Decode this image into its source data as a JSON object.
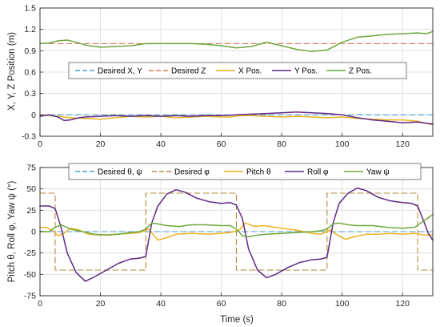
{
  "colors": {
    "desired_blue": "#4d9fcf",
    "desired_red": "#e07a5f",
    "orange": "#edb120",
    "purple": "#5e2a84",
    "green": "#6ea83c",
    "dashed_olive": "#b08a3e"
  },
  "chart_data": [
    {
      "type": "line",
      "title": "",
      "xlabel": "",
      "ylabel": "X, Y, Z Position (m)",
      "xlim": [
        0,
        130
      ],
      "ylim": [
        -0.3,
        1.5
      ],
      "xticks": [
        0,
        20,
        40,
        60,
        80,
        100,
        120
      ],
      "xtick_labels": [
        "0",
        "20",
        "40",
        "60",
        "80",
        "100",
        "120"
      ],
      "yticks": [
        -0.3,
        0,
        0.3,
        0.6,
        0.9,
        1.2,
        1.5
      ],
      "ytick_labels": [
        "-0.3",
        "0",
        "0.3",
        "0.6",
        "0.9",
        "1.2",
        "1.5"
      ],
      "grid": true,
      "legend": "inside-middle horizontal",
      "series": [
        {
          "name": "Desired X, Y",
          "style": "dashed",
          "color": "#4d9fcf",
          "x": [
            0,
            130
          ],
          "y": [
            0,
            0
          ]
        },
        {
          "name": "Desired Z",
          "style": "dashed",
          "color": "#e07a5f",
          "x": [
            0,
            130
          ],
          "y": [
            1.0,
            1.0
          ]
        },
        {
          "name": "X Pos.",
          "style": "solid",
          "color": "#edb120",
          "x": [
            0,
            3,
            6,
            10,
            15,
            20,
            25,
            30,
            35,
            40,
            45,
            50,
            55,
            60,
            63,
            66,
            70,
            75,
            80,
            85,
            90,
            95,
            100,
            105,
            110,
            115,
            120,
            125,
            130
          ],
          "y": [
            0,
            -0.01,
            -0.02,
            -0.04,
            -0.05,
            -0.06,
            -0.04,
            -0.02,
            -0.03,
            -0.02,
            -0.04,
            -0.03,
            -0.02,
            -0.03,
            -0.03,
            -0.01,
            -0.01,
            -0.02,
            -0.03,
            -0.02,
            -0.03,
            -0.04,
            -0.03,
            -0.05,
            -0.06,
            -0.07,
            -0.07,
            -0.09,
            -0.14
          ]
        },
        {
          "name": "Y Pos.",
          "style": "solid",
          "color": "#5e2a84",
          "x": [
            0,
            3,
            6,
            8,
            10,
            13,
            15,
            20,
            25,
            30,
            35,
            40,
            45,
            50,
            55,
            60,
            65,
            70,
            75,
            80,
            85,
            90,
            95,
            100,
            105,
            110,
            115,
            120,
            125,
            130
          ],
          "y": [
            -0.02,
            0.0,
            -0.03,
            -0.08,
            -0.07,
            -0.04,
            -0.03,
            -0.02,
            -0.01,
            -0.02,
            -0.01,
            -0.02,
            -0.01,
            -0.02,
            -0.01,
            -0.01,
            0.0,
            0.01,
            0.02,
            0.03,
            0.04,
            0.03,
            0.02,
            0.0,
            -0.04,
            -0.07,
            -0.09,
            -0.11,
            -0.1,
            -0.13
          ]
        },
        {
          "name": "Z Pos.",
          "style": "solid",
          "color": "#6ea83c",
          "x": [
            0,
            3,
            6,
            9,
            12,
            15,
            20,
            25,
            30,
            35,
            40,
            45,
            50,
            55,
            60,
            65,
            70,
            75,
            80,
            85,
            90,
            95,
            100,
            105,
            110,
            115,
            120,
            125,
            128,
            130
          ],
          "y": [
            1.0,
            1.01,
            1.04,
            1.05,
            1.02,
            0.98,
            0.95,
            0.96,
            0.97,
            1.0,
            1.0,
            1.0,
            1.0,
            0.99,
            0.97,
            0.94,
            0.96,
            1.02,
            0.97,
            0.92,
            0.89,
            0.91,
            1.02,
            1.09,
            1.11,
            1.13,
            1.14,
            1.15,
            1.14,
            1.17
          ]
        }
      ]
    },
    {
      "type": "line",
      "title": "",
      "xlabel": "Time (s)",
      "ylabel": "Pitch θ, Roll φ, Yaw ψ (°)",
      "xlim": [
        0,
        130
      ],
      "ylim": [
        -75,
        75
      ],
      "xticks": [
        0,
        20,
        40,
        60,
        80,
        100,
        120
      ],
      "xtick_labels": [
        "0",
        "20",
        "40",
        "60",
        "80",
        "100",
        "120"
      ],
      "yticks": [
        -75,
        -50,
        -25,
        0,
        25,
        50,
        75
      ],
      "ytick_labels": [
        "-75",
        "-50",
        "-25",
        "0",
        "25",
        "50",
        "75"
      ],
      "grid": true,
      "legend": "top horizontal",
      "series": [
        {
          "name": "Desired θ, ψ",
          "style": "dashed",
          "color": "#4d9fcf",
          "x": [
            0,
            130
          ],
          "y": [
            0,
            0
          ]
        },
        {
          "name": "Desired φ",
          "style": "dashed",
          "color": "#e07a5f",
          "x": [
            0,
            5,
            5,
            35,
            35,
            65,
            65,
            95,
            95,
            125,
            125,
            130
          ],
          "y": [
            45,
            45,
            -45,
            -45,
            45,
            45,
            -45,
            -45,
            45,
            45,
            -45,
            -45
          ]
        },
        {
          "name": "Pitch θ",
          "style": "solid",
          "color": "#edb120",
          "x": [
            0,
            2,
            4,
            6,
            8,
            10,
            13,
            16,
            20,
            25,
            30,
            33,
            36,
            39,
            42,
            45,
            50,
            55,
            60,
            63,
            66,
            68,
            71,
            74,
            78,
            82,
            86,
            90,
            93,
            96,
            98,
            101,
            104,
            108,
            112,
            116,
            120,
            124,
            127,
            130
          ],
          "y": [
            5,
            5,
            2,
            -5,
            -2,
            4,
            2,
            -3,
            -4,
            -3,
            -2,
            -1,
            3,
            -10,
            -7,
            -3,
            -2,
            -3,
            -2,
            -1,
            2,
            10,
            6,
            7,
            5,
            3,
            1,
            -2,
            -3,
            2,
            -3,
            -9,
            -6,
            -3,
            -3,
            -2,
            -3,
            -2,
            -4,
            -4
          ]
        },
        {
          "name": "Roll φ",
          "style": "solid",
          "color": "#5e2a84",
          "x": [
            0,
            3,
            5,
            7,
            9,
            12,
            15,
            18,
            22,
            26,
            30,
            33,
            35,
            37,
            39,
            42,
            45,
            48,
            52,
            56,
            60,
            63,
            65,
            67,
            69,
            72,
            75,
            78,
            82,
            86,
            90,
            93,
            95,
            97,
            99,
            102,
            105,
            108,
            112,
            116,
            120,
            123,
            125,
            127,
            128.5,
            130
          ],
          "y": [
            30,
            30,
            27,
            5,
            -25,
            -48,
            -58,
            -53,
            -45,
            -37,
            -32,
            -31,
            -29,
            10,
            30,
            44,
            49,
            46,
            39,
            35,
            33,
            34,
            31,
            15,
            -20,
            -45,
            -54,
            -50,
            -42,
            -36,
            -33,
            -32,
            -30,
            10,
            33,
            45,
            51,
            48,
            40,
            36,
            34,
            33,
            30,
            12,
            -2,
            -10
          ]
        },
        {
          "name": "Yaw ψ",
          "style": "solid",
          "color": "#6ea83c",
          "x": [
            0,
            3,
            5,
            7,
            10,
            14,
            18,
            22,
            26,
            30,
            33,
            35,
            37,
            39,
            42,
            46,
            50,
            55,
            60,
            63,
            65,
            67,
            69,
            72,
            75,
            80,
            85,
            90,
            93,
            95,
            97,
            99,
            102,
            105,
            110,
            115,
            120,
            124,
            126,
            128,
            130
          ],
          "y": [
            0,
            0,
            5,
            8,
            3,
            0,
            -3,
            -4,
            -3,
            -1,
            0,
            3,
            10,
            9,
            7,
            6,
            8,
            8,
            7,
            7,
            3,
            -5,
            -6,
            -4,
            -3,
            -2,
            -1,
            0,
            1,
            3,
            9,
            10,
            8,
            7,
            7,
            5,
            4,
            5,
            10,
            15,
            20
          ]
        }
      ]
    }
  ]
}
